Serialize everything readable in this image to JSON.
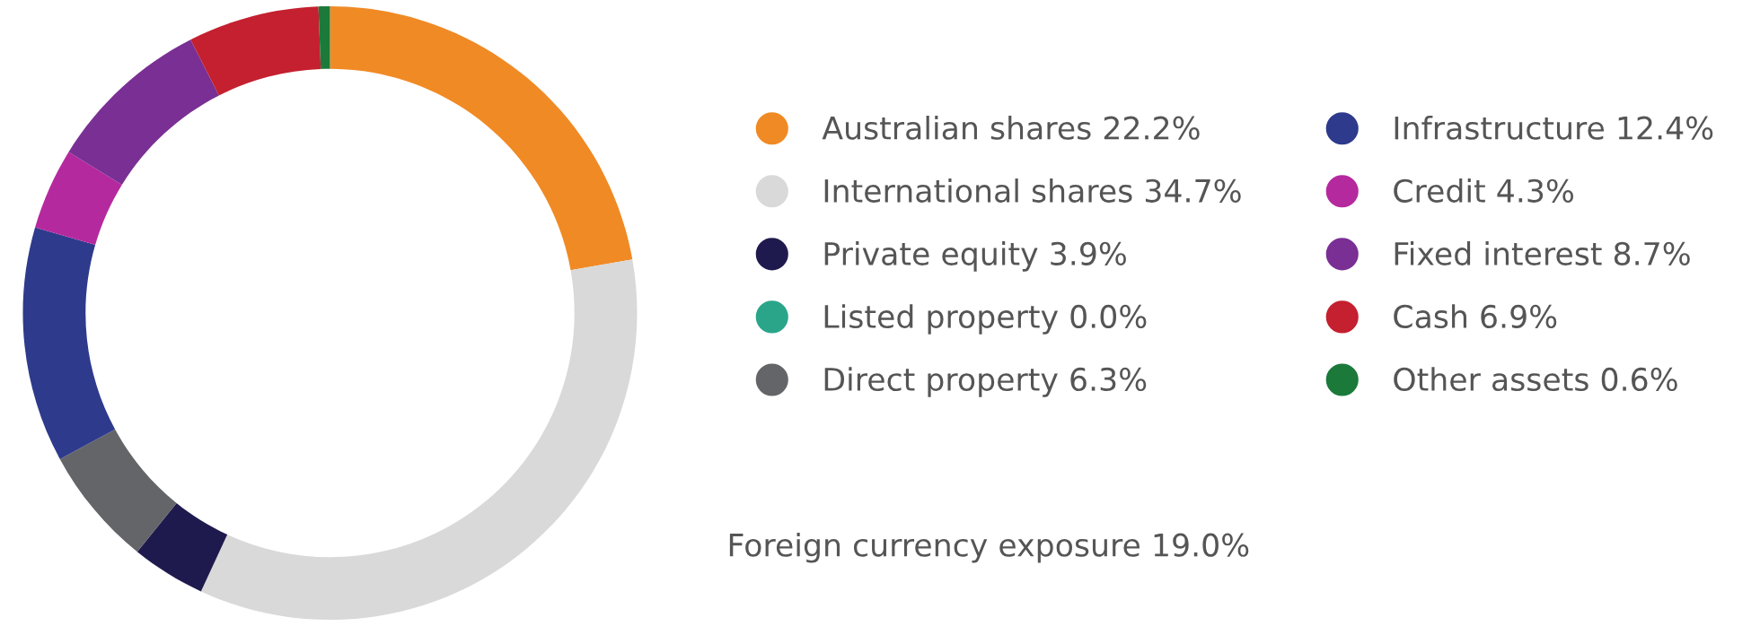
{
  "chart_data": {
    "type": "donut",
    "categories": [
      "Australian shares",
      "International shares",
      "Private equity",
      "Listed property",
      "Direct property",
      "Infrastructure",
      "Credit",
      "Fixed interest",
      "Cash",
      "Other assets"
    ],
    "values": [
      22.2,
      34.7,
      3.9,
      0.0,
      6.3,
      12.4,
      4.3,
      8.7,
      6.9,
      0.6
    ],
    "value_labels": [
      "22.2%",
      "34.7%",
      "3.9%",
      "0.0%",
      "6.3%",
      "12.4%",
      "4.3%",
      "8.7%",
      "6.9%",
      "0.6%"
    ],
    "colors": [
      "#f08a24",
      "#d9d9d9",
      "#1f1a4e",
      "#2aa58a",
      "#636569",
      "#2e3a8c",
      "#b5299e",
      "#7a2f94",
      "#c4202f",
      "#1b7a3a"
    ],
    "legend": "right",
    "annotations": [
      "Foreign currency exposure 19.0%"
    ]
  }
}
